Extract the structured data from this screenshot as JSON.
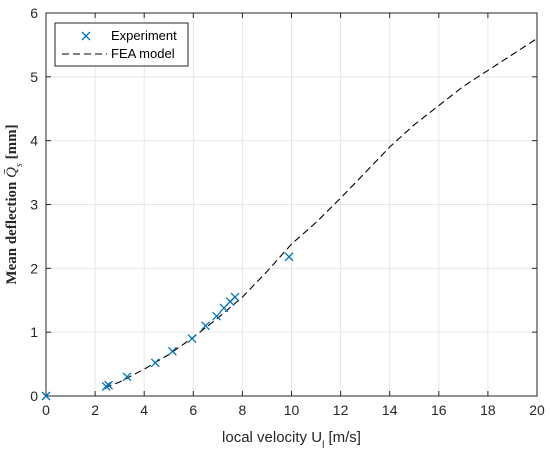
{
  "chart_data": {
    "type": "scatter",
    "xlabel": "local velocity U_l [m/s]",
    "xlabel_main": "local velocity U",
    "xlabel_sub": "l",
    "xlabel_unit": " [m/s]",
    "ylabel": "Mean deflection Q̄s [mm]",
    "ylabel_main": "Mean deflection ",
    "ylabel_symbol": "Q̄",
    "ylabel_sub": "s",
    "ylabel_unit": " [mm]",
    "xlim": [
      0,
      20
    ],
    "ylim": [
      0,
      6
    ],
    "x_ticks": [
      0,
      2,
      4,
      6,
      8,
      10,
      12,
      14,
      16,
      18,
      20
    ],
    "y_ticks": [
      0,
      1,
      2,
      3,
      4,
      5,
      6
    ],
    "grid": true,
    "legend_position": "top-left",
    "series": [
      {
        "name": "Experiment",
        "kind": "marker-x",
        "color": "#0072BD",
        "points": [
          [
            0,
            0
          ],
          [
            2.45,
            0.15
          ],
          [
            2.55,
            0.17
          ],
          [
            3.3,
            0.3
          ],
          [
            4.45,
            0.52
          ],
          [
            5.15,
            0.7
          ],
          [
            5.95,
            0.9
          ],
          [
            6.5,
            1.1
          ],
          [
            6.95,
            1.25
          ],
          [
            7.25,
            1.38
          ],
          [
            7.5,
            1.48
          ],
          [
            7.7,
            1.55
          ],
          [
            9.9,
            2.18
          ]
        ]
      },
      {
        "name": "FEA model",
        "kind": "dashed-line",
        "color": "#000000",
        "points": [
          [
            2.4,
            0.13
          ],
          [
            3.0,
            0.22
          ],
          [
            4.0,
            0.42
          ],
          [
            5.0,
            0.65
          ],
          [
            6.0,
            0.92
          ],
          [
            7.0,
            1.22
          ],
          [
            8.0,
            1.55
          ],
          [
            9.0,
            1.95
          ],
          [
            10.0,
            2.38
          ],
          [
            11.0,
            2.72
          ],
          [
            12.0,
            3.1
          ],
          [
            13.0,
            3.5
          ],
          [
            14.0,
            3.9
          ],
          [
            15.0,
            4.25
          ],
          [
            16.0,
            4.55
          ],
          [
            17.0,
            4.85
          ],
          [
            18.0,
            5.1
          ],
          [
            19.0,
            5.35
          ],
          [
            20.0,
            5.6
          ]
        ]
      }
    ]
  }
}
